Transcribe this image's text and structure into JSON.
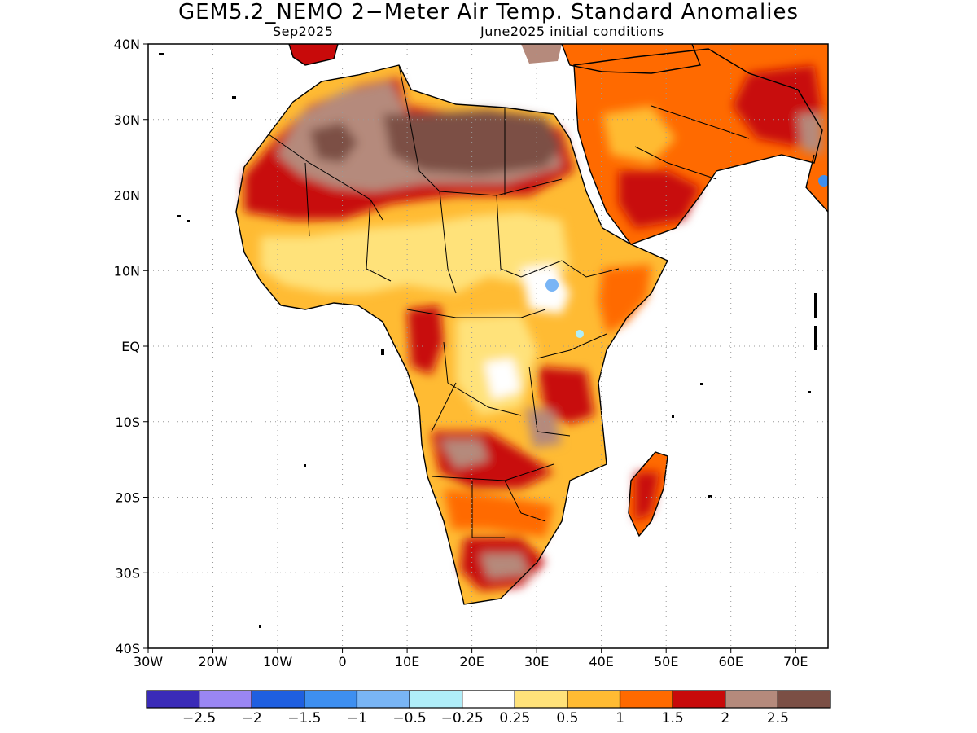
{
  "header": {
    "title": "GEM5.2_NEMO 2−Meter Air Temp. Standard Anomalies",
    "valid_month": "Sep2025",
    "init_conditions": "June2025 initial conditions"
  },
  "map": {
    "lat_range": [
      -40,
      40
    ],
    "lon_range": [
      -30,
      75
    ],
    "lat_ticks": [
      "40N",
      "30N",
      "20N",
      "10N",
      "EQ",
      "10S",
      "20S",
      "30S",
      "40S"
    ],
    "lon_ticks": [
      "30W",
      "20W",
      "10W",
      "0",
      "10E",
      "20E",
      "30E",
      "40E",
      "50E",
      "60E",
      "70E"
    ],
    "gridlines": "dotted"
  },
  "legend": {
    "colors": [
      "#3a2bb8",
      "#9a86f3",
      "#1f5fe0",
      "#3e8ff0",
      "#79b5f5",
      "#b0eef9",
      "#ffffff",
      "#ffe27a",
      "#ffbb33",
      "#ff6a00",
      "#c80a0a",
      "#b58a7c",
      "#7b4f45"
    ],
    "labels": [
      "−2.5",
      "−2",
      "−1.5",
      "−1",
      "−0.5",
      "−0.25",
      "0.25",
      "0.5",
      "1",
      "1.5",
      "2",
      "2.5"
    ]
  }
}
